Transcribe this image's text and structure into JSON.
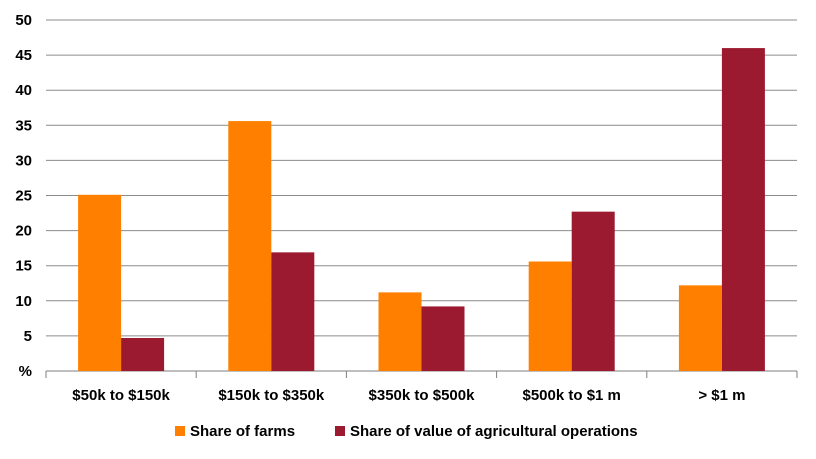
{
  "chart_data": {
    "type": "bar",
    "categories": [
      "$50k to $150k",
      "$150k to $350k",
      "$350k to $500k",
      "$500k to $1 m",
      "> $1 m"
    ],
    "series": [
      {
        "name": "Share of farms",
        "color": "#ff7f00",
        "values": [
          25.1,
          35.6,
          11.2,
          15.6,
          12.2
        ]
      },
      {
        "name": "Share of value of agricultural operations",
        "color": "#9b1a30",
        "values": [
          4.7,
          16.9,
          9.2,
          22.7,
          46.0
        ]
      }
    ],
    "y_ticks": [
      "%",
      "5",
      "10",
      "15",
      "20",
      "25",
      "30",
      "35",
      "40",
      "45",
      "50"
    ],
    "ylim": [
      0,
      50
    ],
    "grid": true,
    "legend_position": "bottom-center"
  }
}
